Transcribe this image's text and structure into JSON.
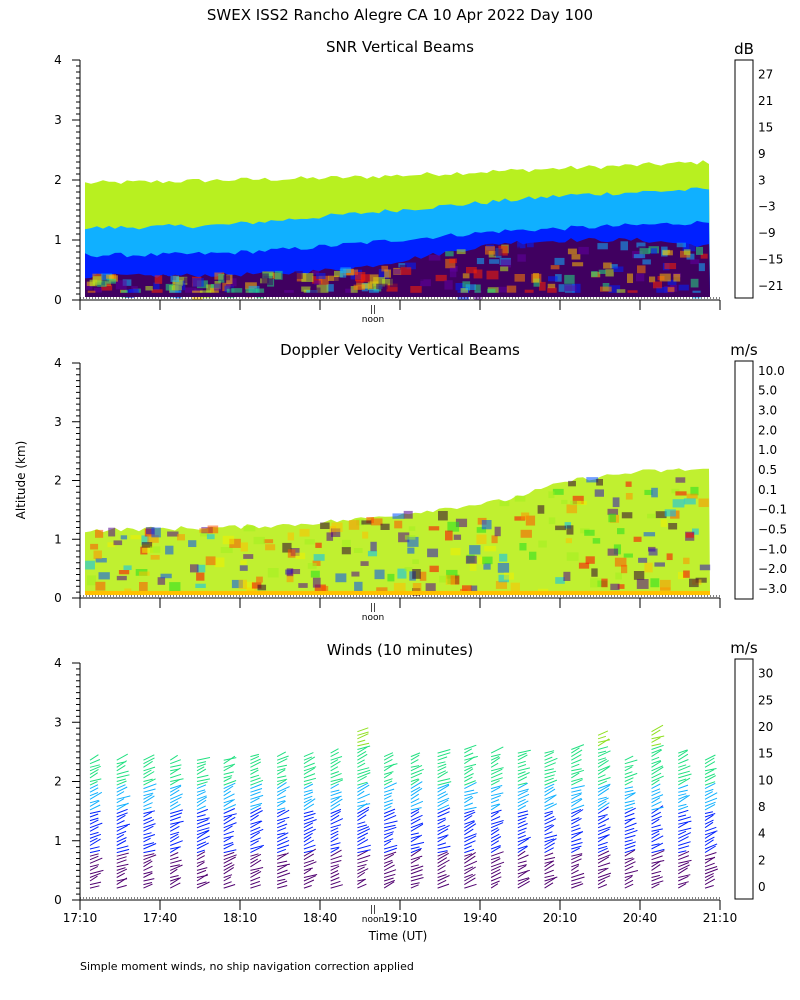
{
  "title": "SWEX ISS2 Rancho Alegre CA  10 Apr 2022 Day 100",
  "ylabel": "Altitude (km)",
  "xlabel": "Time (UT)",
  "footnote": "Simple moment winds, no ship navigation correction applied",
  "noon_label": "noon",
  "noon_marker": "||",
  "y_ticks": [
    "0",
    "1",
    "2",
    "3",
    "4"
  ],
  "x_ticks": [
    "17:10",
    "17:40",
    "18:10",
    "18:40",
    "19:10",
    "19:40",
    "20:10",
    "20:40",
    "21:10"
  ],
  "chart_data": [
    {
      "type": "heatmap",
      "title": "SNR Vertical Beams",
      "unit": "dB",
      "ylim": [
        0,
        4
      ],
      "colorbar": {
        "labels": [
          "27",
          "21",
          "15",
          "9",
          "3",
          "−3",
          "−9",
          "−15",
          "−21"
        ],
        "colors": [
          "#ffc000",
          "#ff7f00",
          "#ff2000",
          "#400060",
          "#6000a0",
          "#0020ff",
          "#10b0ff",
          "#20e080",
          "#b8f020"
        ]
      },
      "layers": [
        {
          "name": "low-snr-top",
          "top_km": [
            1.95,
            1.97,
            2.0,
            2.02,
            2.05,
            2.1,
            2.15,
            2.2,
            2.25,
            2.3
          ],
          "color": "#b8f020"
        },
        {
          "name": "mid-snr",
          "top_km": [
            1.2,
            1.22,
            1.25,
            1.35,
            1.45,
            1.55,
            1.65,
            1.75,
            1.8,
            1.85
          ],
          "color": "#10b0ff"
        },
        {
          "name": "high-snr",
          "top_km": [
            0.75,
            0.75,
            0.78,
            0.85,
            0.95,
            1.05,
            1.15,
            1.2,
            1.25,
            1.3
          ],
          "color": "#0020ff"
        },
        {
          "name": "very-high-snr",
          "top_km": [
            0.4,
            0.4,
            0.42,
            0.45,
            0.55,
            0.75,
            0.95,
            1.0,
            1.0,
            0.9
          ],
          "color": "#400060"
        }
      ]
    },
    {
      "type": "heatmap",
      "title": "Doppler Velocity Vertical Beams",
      "unit": "m/s",
      "ylim": [
        0,
        4
      ],
      "colorbar": {
        "labels": [
          "10.0",
          "5.0",
          "3.0",
          "2.0",
          "1.0",
          "0.5",
          "0.1",
          "−0.1",
          "−0.5",
          "−1.0",
          "−2.0",
          "−3.0"
        ],
        "colors": [
          "#300030",
          "#500090",
          "#3010c0",
          "#0050ff",
          "#00c0ff",
          "#20e020",
          "#a0f020",
          "#f0f000",
          "#ffc000",
          "#ff9000",
          "#ff5000",
          "#ff0000"
        ]
      },
      "layers": [
        {
          "name": "echo-top",
          "top_km": [
            1.15,
            1.18,
            1.2,
            1.25,
            1.35,
            1.5,
            1.65,
            2.0,
            2.15,
            2.2
          ],
          "color": "#c0f030"
        }
      ]
    },
    {
      "type": "scatter",
      "title": "Winds (10 minutes)",
      "unit": "m/s",
      "ylim": [
        0,
        4
      ],
      "colorbar": {
        "labels": [
          "30",
          "25",
          "20",
          "15",
          "10",
          "8",
          "4",
          "2",
          "0"
        ],
        "colors": [
          "#ff0000",
          "#ff7000",
          "#ffb000",
          "#90e020",
          "#20e080",
          "#10b0ff",
          "#0020ff",
          "#500070",
          "#000000"
        ]
      },
      "profile_count": 24,
      "profile_top_km": [
        2.4,
        2.4,
        2.4,
        2.4,
        2.4,
        2.4,
        2.45,
        2.45,
        2.45,
        2.5,
        2.9,
        2.45,
        2.45,
        2.5,
        2.6,
        2.5,
        2.5,
        2.5,
        2.6,
        2.8,
        2.4,
        2.9,
        2.5,
        2.4
      ]
    }
  ]
}
